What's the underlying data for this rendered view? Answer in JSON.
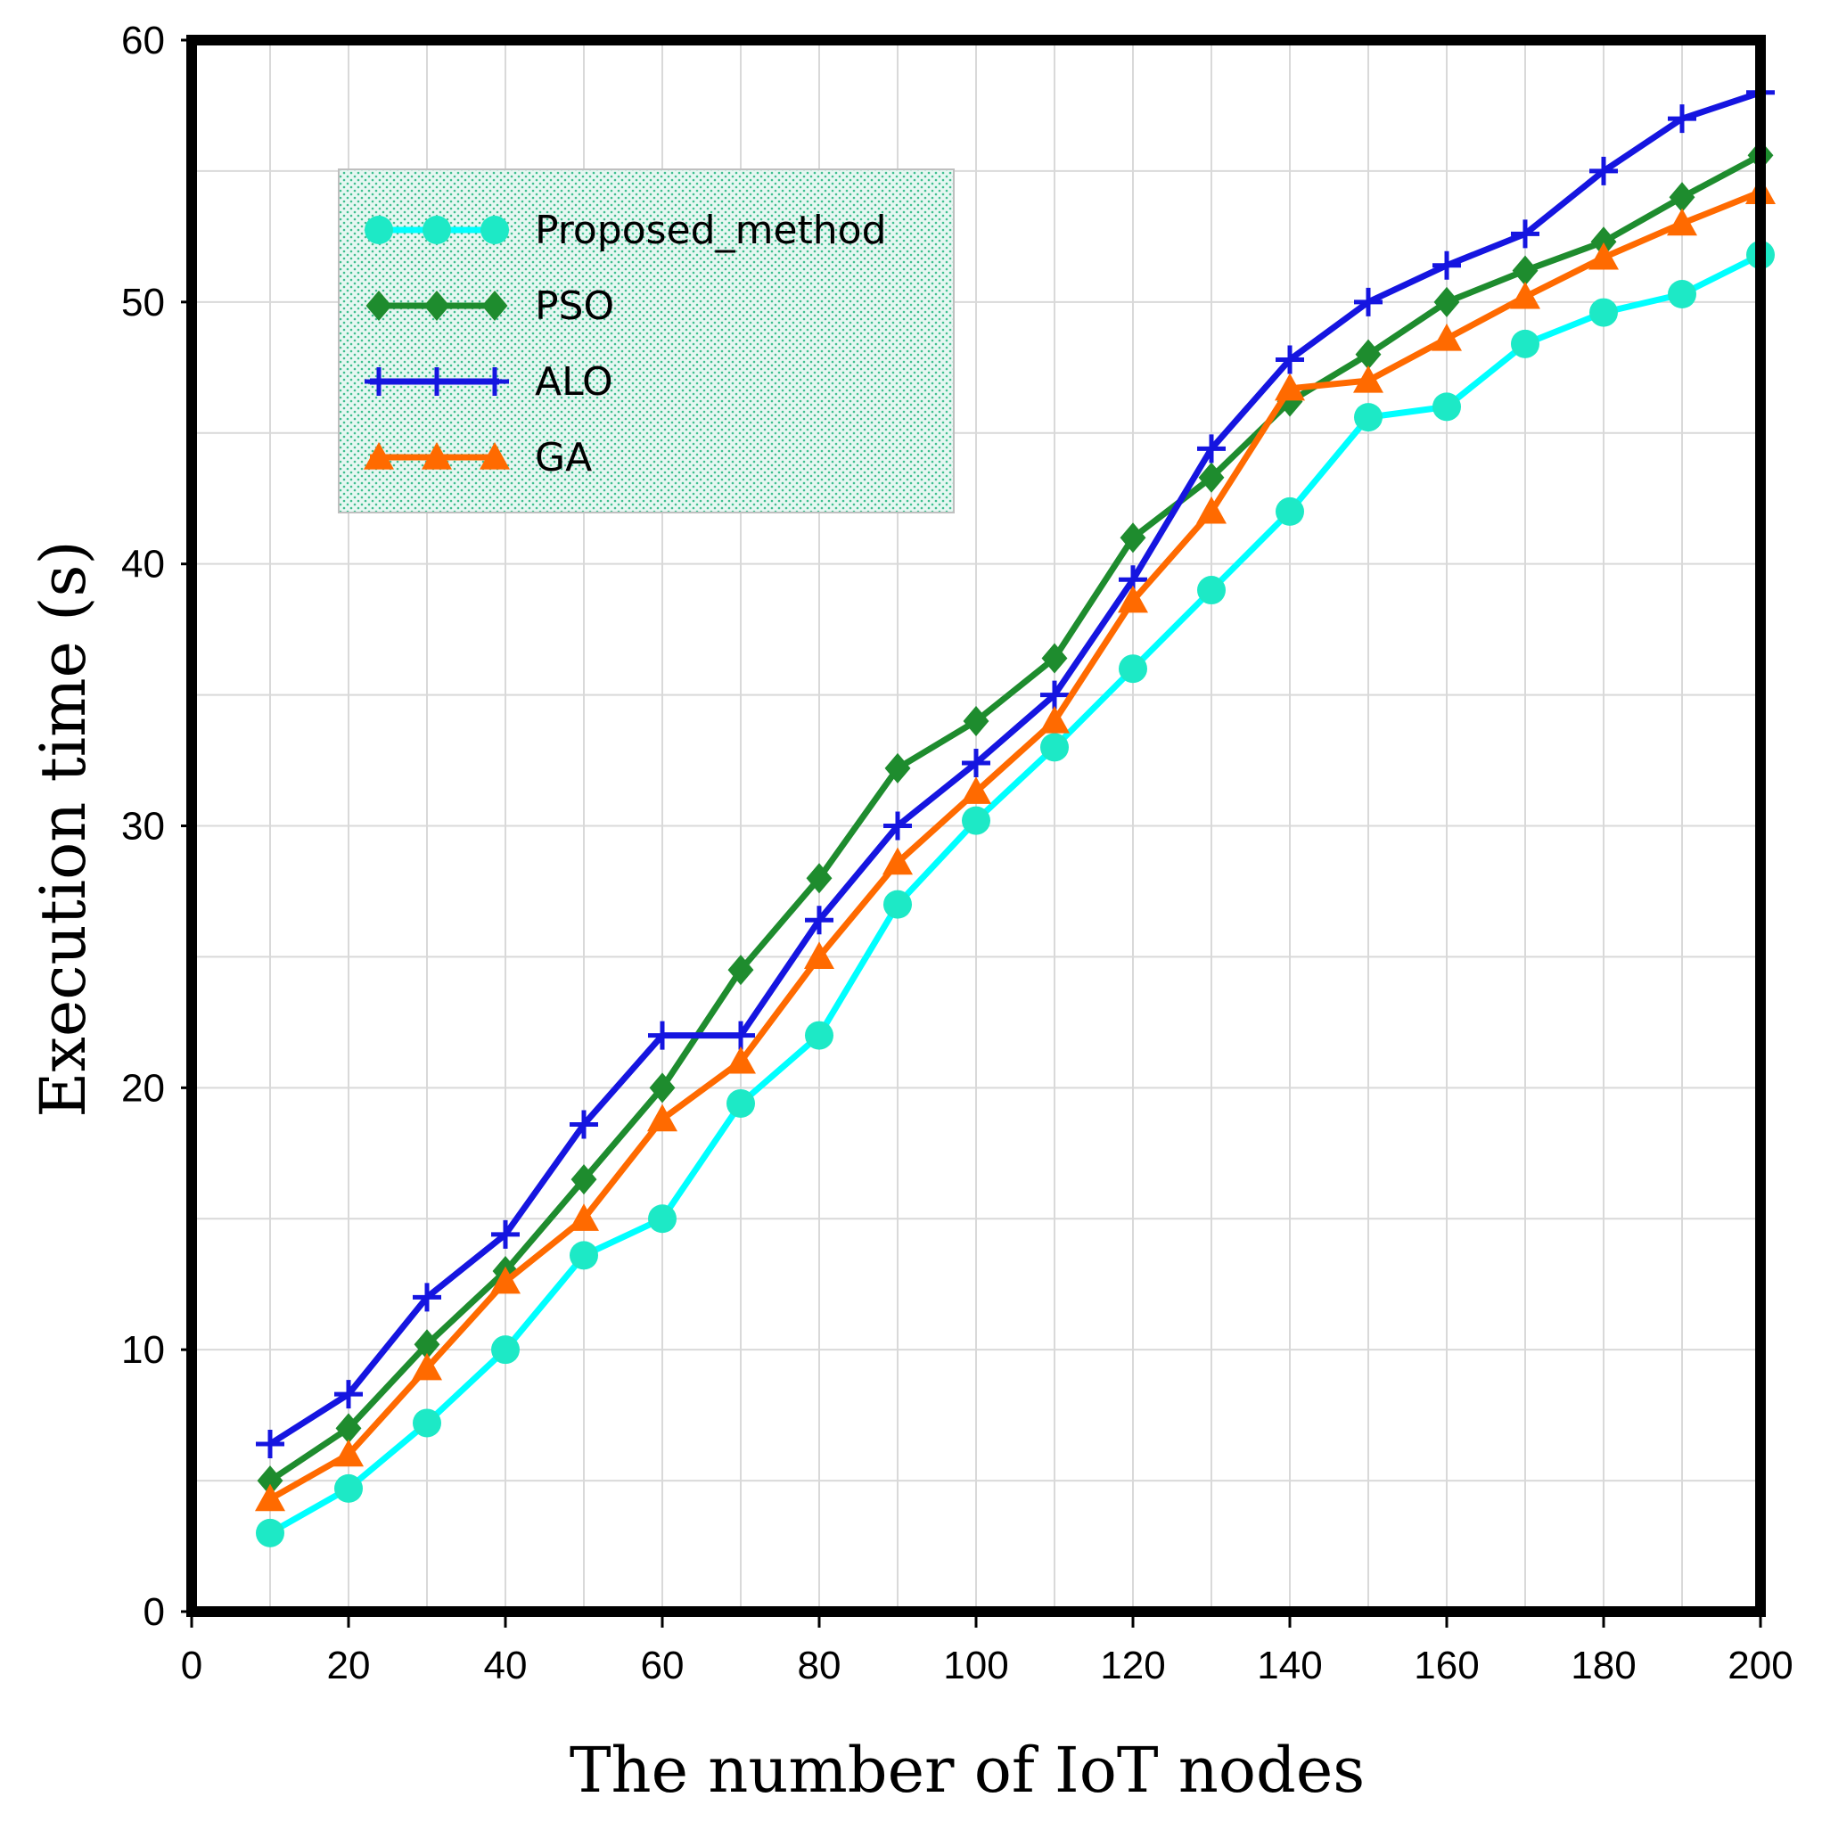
{
  "chart_data": {
    "type": "line",
    "title": "",
    "xlabel": "The number of IoT nodes",
    "ylabel": "Execution time (s)",
    "xlim": [
      0,
      200
    ],
    "ylim": [
      0,
      60
    ],
    "x_ticks": [
      "0",
      "20",
      "40",
      "60",
      "80",
      "100",
      "120",
      "140",
      "160",
      "180",
      "200"
    ],
    "y_ticks": [
      "0",
      "10",
      "20",
      "30",
      "40",
      "50",
      "60"
    ],
    "grid": true,
    "legend_position": "top-left",
    "x": [
      10,
      20,
      30,
      40,
      50,
      60,
      70,
      80,
      90,
      100,
      110,
      120,
      130,
      140,
      150,
      160,
      170,
      180,
      190,
      200
    ],
    "series": [
      {
        "name": "Proposed_method",
        "color": "#00ffff",
        "marker_color": "#1de9c6",
        "marker": "circle",
        "values": [
          3.0,
          4.7,
          7.2,
          10.0,
          13.6,
          15.0,
          19.4,
          22.0,
          27.0,
          30.2,
          33.0,
          36.0,
          39.0,
          42.0,
          45.6,
          46.0,
          48.4,
          49.6,
          50.3,
          51.8
        ]
      },
      {
        "name": "PSO",
        "color": "#1e8c2e",
        "marker_color": "#1e8c2e",
        "marker": "diamond",
        "values": [
          5.0,
          7.0,
          10.2,
          13.0,
          16.5,
          20.0,
          24.5,
          28.0,
          32.2,
          34.0,
          36.4,
          41.0,
          43.3,
          46.2,
          48.0,
          50.0,
          51.2,
          52.3,
          54.0,
          55.6
        ]
      },
      {
        "name": "ALO",
        "color": "#1515e0",
        "marker_color": "#1515e0",
        "marker": "plus",
        "values": [
          6.4,
          8.3,
          12.0,
          14.4,
          18.6,
          22.0,
          22.0,
          26.4,
          30.0,
          32.4,
          35.0,
          39.4,
          44.4,
          47.8,
          50.0,
          51.4,
          52.6,
          55.0,
          57.0,
          58.0
        ]
      },
      {
        "name": "GA",
        "color": "#ff6a00",
        "marker_color": "#ff6a00",
        "marker": "triangle",
        "values": [
          4.3,
          6.0,
          9.3,
          12.6,
          15.0,
          18.8,
          21.0,
          25.0,
          28.6,
          31.3,
          34.0,
          38.6,
          42.0,
          46.7,
          47.0,
          48.6,
          50.2,
          51.7,
          53.0,
          54.2
        ]
      }
    ]
  }
}
